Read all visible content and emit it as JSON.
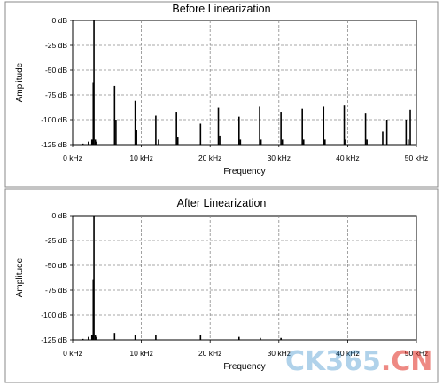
{
  "watermark": {
    "main": "CK365",
    "suffix": ".CN"
  },
  "chart_data": [
    {
      "type": "bar",
      "title": "Before Linearization",
      "xlabel": "Frequency",
      "ylabel": "Amplitude",
      "xlim": [
        0,
        50
      ],
      "ylim": [
        -125,
        0
      ],
      "grid": true,
      "xticks": [
        0,
        10,
        20,
        30,
        40,
        50
      ],
      "xtick_labels": [
        "0 kHz",
        "10 kHz",
        "20 kHz",
        "30 kHz",
        "40 kHz",
        "50 kHz"
      ],
      "yticks": [
        0,
        -25,
        -50,
        -75,
        -100,
        -125
      ],
      "ytick_labels": [
        "0 dB",
        "-25 dB",
        "-50 dB",
        "-75 dB",
        "-100 dB",
        "-125 dB"
      ],
      "x": [
        1.5,
        2.3,
        2.8,
        3.0,
        3.1,
        3.3,
        3.5,
        6.1,
        6.3,
        9.1,
        9.3,
        12.1,
        12.5,
        15.1,
        15.3,
        18.6,
        21.2,
        21.4,
        24.2,
        24.4,
        27.2,
        27.4,
        30.3,
        30.5,
        33.4,
        33.6,
        36.5,
        36.7,
        39.5,
        39.7,
        42.6,
        42.8,
        45.1,
        45.7,
        48.5,
        48.8,
        49.1
      ],
      "values": [
        -124,
        -122,
        -120,
        -62,
        0,
        -120,
        -122,
        -66,
        -100,
        -81,
        -110,
        -96,
        -120,
        -92,
        -117,
        -104,
        -88,
        -116,
        -97,
        -120,
        -87,
        -120,
        -92,
        -120,
        -89,
        -120,
        -87,
        -120,
        -85,
        -120,
        -93,
        -120,
        -112,
        -100,
        -100,
        -120,
        -90
      ]
    },
    {
      "type": "bar",
      "title": "After Linearization",
      "xlabel": "Frequency",
      "ylabel": "Amplitude",
      "xlim": [
        0,
        50
      ],
      "ylim": [
        -125,
        0
      ],
      "grid": true,
      "xticks": [
        0,
        10,
        20,
        30,
        40,
        50
      ],
      "xtick_labels": [
        "0 kHz",
        "10 kHz",
        "20 kHz",
        "30 kHz",
        "40 kHz",
        "50 kHz"
      ],
      "yticks": [
        0,
        -25,
        -50,
        -75,
        -100,
        -125
      ],
      "ytick_labels": [
        "0 dB",
        "-25 dB",
        "-50 dB",
        "-75 dB",
        "-100 dB",
        "-125 dB"
      ],
      "x": [
        1.5,
        2.3,
        2.8,
        3.0,
        3.1,
        3.3,
        3.5,
        6.1,
        9.1,
        12.1,
        18.6,
        24.2,
        27.3,
        30.3
      ],
      "values": [
        -124,
        -122,
        -120,
        -64,
        0,
        -120,
        -122,
        -118,
        -120,
        -120,
        -120,
        -122,
        -123,
        -123
      ]
    }
  ]
}
